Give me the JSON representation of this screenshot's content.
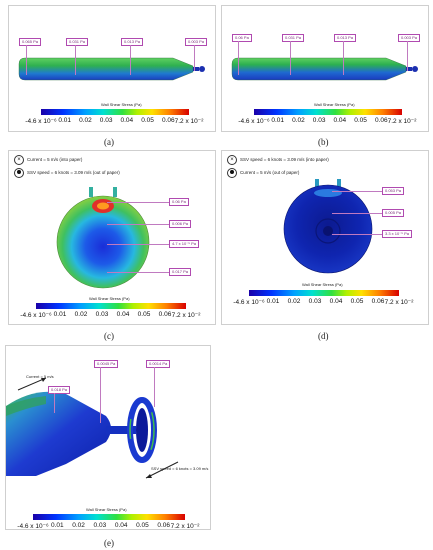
{
  "colorbar": {
    "title": "Wall Shear Stress (Pa)",
    "ticks": [
      "-4.6 x 10⁻⁶",
      "0.01",
      "0.02",
      "0.03",
      "0.04",
      "0.05",
      "0.06",
      "7.2 x 10⁻²"
    ]
  },
  "panels": {
    "a": {
      "label": "(a)",
      "tags": [
        "0.065 Pa",
        "0.031 Pa",
        "0.013 Pa",
        "0.003 Pa"
      ]
    },
    "b": {
      "label": "(b)",
      "tags": [
        "0.06 Pa",
        "0.031 Pa",
        "0.013 Pa",
        "0.003 Pa"
      ]
    },
    "c": {
      "label": "(c)",
      "legend_current": "Current = 5 m/s (into paper)",
      "legend_ssv": "SSV speed = 6 knots = 3.09 m/s (out of paper)",
      "tags": [
        "0.06 Pa",
        "0.006 Pa",
        "4.7 x 10⁻⁵ Pa",
        "0.017 Pa"
      ]
    },
    "d": {
      "label": "(d)",
      "legend_ssv": "SSV speed = 6 knots = 3.09 m/s (into paper)",
      "legend_current": "Current = 5 m/s (out of paper)",
      "tags": [
        "0.053 Pa",
        "0.005 Pa",
        "3.3 x 10⁻⁵ Pa"
      ]
    },
    "e": {
      "label": "(e)",
      "current_text": "Current = 5 m/s",
      "ssv_text": "SSV speed = 6 knots = 3.09 m/s",
      "tags": [
        "0.018 Pa",
        "0.0045 Pa",
        "0.0014 Pa"
      ]
    }
  },
  "colors": {
    "tag_border": "#b04ab0",
    "body_green": "#3fbf4a",
    "body_blue": "#1e3bd0",
    "deep_blue": "#0c1fa8"
  }
}
